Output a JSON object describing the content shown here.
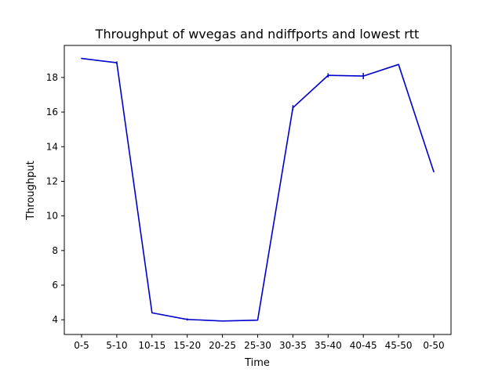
{
  "chart_data": {
    "type": "line",
    "title": "Throughput of wvegas and ndiffports and lowest rtt",
    "xlabel": "Time",
    "ylabel": "Throughput",
    "categories": [
      "0-5",
      "5-10",
      "10-15",
      "15-20",
      "20-25",
      "25-30",
      "30-35",
      "35-40",
      "40-45",
      "45-50",
      "0-50"
    ],
    "yticks": [
      4,
      6,
      8,
      10,
      12,
      14,
      16,
      18
    ],
    "ylim": [
      3.15,
      19.85
    ],
    "grid": false,
    "legend": "none",
    "series": [
      {
        "color": "#0000cc",
        "values": [
          19.1,
          18.85,
          4.4,
          4.02,
          3.93,
          3.98,
          16.25,
          18.12,
          18.08,
          18.75,
          12.55
        ],
        "errors": [
          0.0,
          0.08,
          0.0,
          0.06,
          0.0,
          0.0,
          0.15,
          0.12,
          0.18,
          0.0,
          0.0
        ]
      }
    ]
  }
}
